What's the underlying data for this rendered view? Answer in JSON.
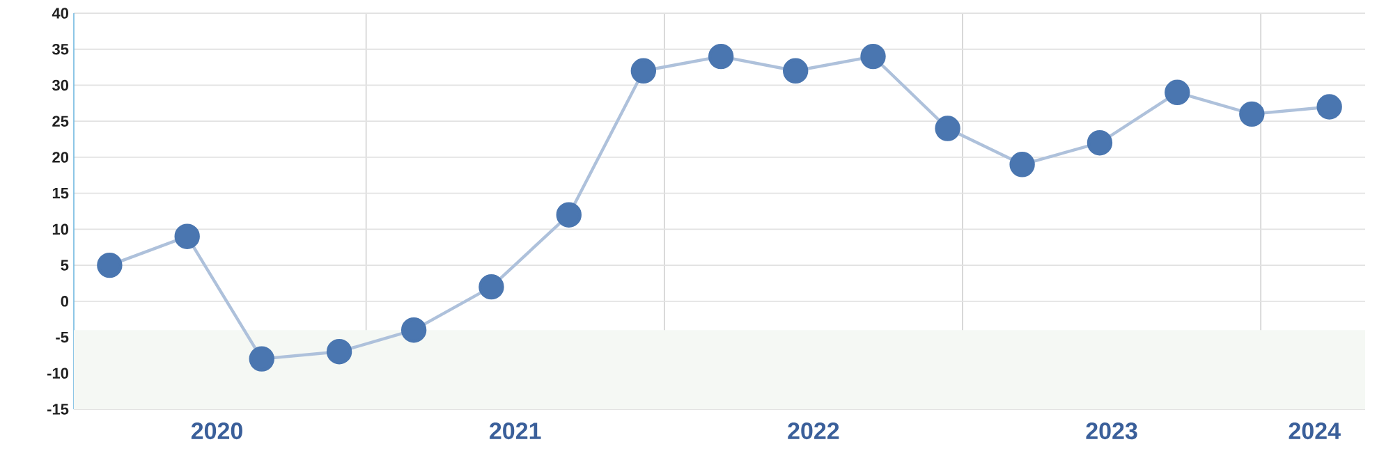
{
  "chart_data": {
    "type": "line",
    "x": [
      2020.14,
      2020.4,
      2020.65,
      2020.91,
      2021.16,
      2021.42,
      2021.68,
      2021.93,
      2022.19,
      2022.44,
      2022.7,
      2022.95,
      2023.2,
      2023.46,
      2023.72,
      2023.97,
      2024.23
    ],
    "series": [
      {
        "color": "#4a76b0",
        "values": [
          5,
          9,
          -8,
          -7,
          -4,
          2,
          12,
          32,
          34,
          32,
          34,
          24,
          19,
          22,
          29,
          26,
          27
        ]
      }
    ],
    "xlim": [
      2020.02,
      2024.35
    ],
    "xticks": [
      {
        "value": 2020.5,
        "label": "2020"
      },
      {
        "value": 2021,
        "label": null
      },
      {
        "value": 2021.5,
        "label": "2021"
      },
      {
        "value": 2022,
        "label": null
      },
      {
        "value": 2022.5,
        "label": "2022"
      },
      {
        "value": 2023,
        "label": null
      },
      {
        "value": 2023.5,
        "label": "2023"
      },
      {
        "value": 2024,
        "label": null
      },
      {
        "value": 2024.18,
        "label": "2024"
      }
    ],
    "ylim": [
      -15,
      40
    ],
    "yticks": [
      -15,
      -10,
      -5,
      0,
      5,
      10,
      15,
      20,
      25,
      30,
      35,
      40
    ],
    "bands": [
      {
        "axis": "y",
        "from": -15,
        "to": -4,
        "color": "#f5f8f4"
      }
    ],
    "grid": true,
    "marker": "circle",
    "line_style": "solid"
  }
}
